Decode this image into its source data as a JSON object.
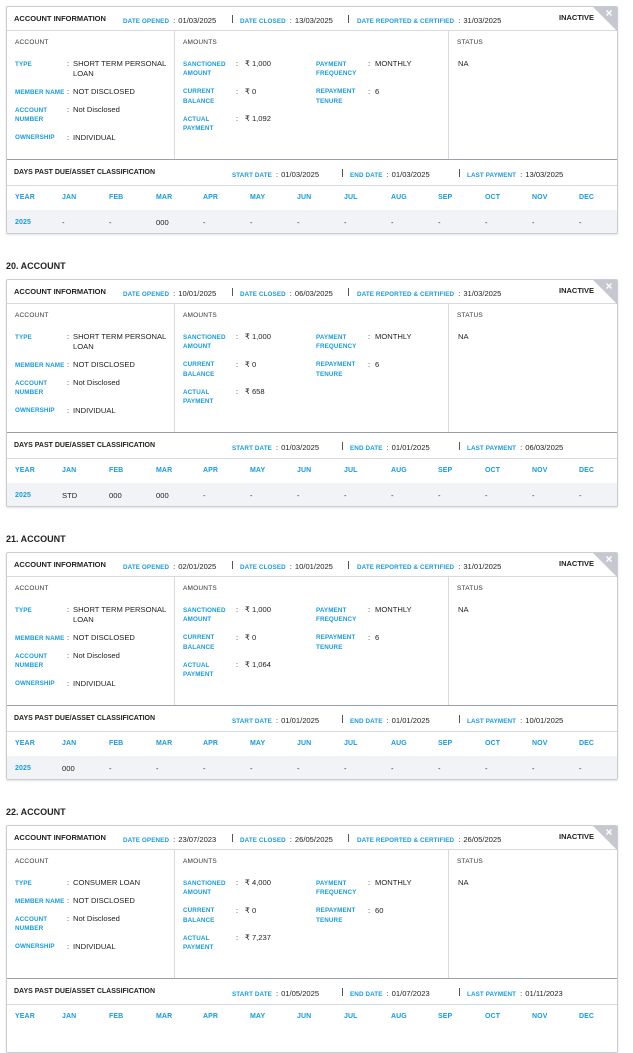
{
  "labels": {
    "account_information": "ACCOUNT INFORMATION",
    "date_opened": "DATE OPENED",
    "date_closed": "DATE CLOSED",
    "date_reported": "DATE REPORTED & CERTIFIED",
    "colon": ":",
    "account": "ACCOUNT",
    "amounts": "AMOUNTS",
    "status": "STATUS",
    "type": "TYPE",
    "member_name": "MEMBER NAME",
    "account_number": "ACCOUNT NUMBER",
    "ownership": "OWNERSHIP",
    "sanctioned_amount": "SANCTIONED AMOUNT",
    "current_balance": "CURRENT BALANCE",
    "actual_payment": "ACTUAL PAYMENT",
    "payment_frequency": "PAYMENT FREQUENCY",
    "repayment_tenure": "REPAYMENT TENURE",
    "dpd_title": "DAYS PAST DUE/ASSET CLASSIFICATION",
    "start_date": "START DATE",
    "end_date": "END DATE",
    "last_payment": "LAST PAYMENT",
    "year": "YEAR",
    "months": [
      "JAN",
      "FEB",
      "MAR",
      "APR",
      "MAY",
      "JUN",
      "JUL",
      "AUG",
      "SEP",
      "OCT",
      "NOV",
      "DEC"
    ]
  },
  "accounts": [
    {
      "date_opened": "01/03/2025",
      "date_closed": "13/03/2025",
      "date_reported": "31/03/2025",
      "status": "INACTIVE",
      "type": "SHORT TERM PERSONAL LOAN",
      "member_name": "NOT DISCLOSED",
      "account_number": "Not Disclosed",
      "ownership": "INDIVIDUAL",
      "sanctioned_amount": "₹ 1,000",
      "current_balance": "₹ 0",
      "actual_payment": "₹ 1,092",
      "payment_frequency": "MONTHLY",
      "repayment_tenure": "6",
      "status_value": "NA",
      "start_date": "01/03/2025",
      "end_date": "01/03/2025",
      "last_payment": "13/03/2025",
      "dpd": [
        {
          "year": "2025",
          "values": [
            "-",
            "-",
            "000",
            "-",
            "-",
            "-",
            "-",
            "-",
            "-",
            "-",
            "-",
            "-"
          ]
        }
      ]
    },
    {
      "heading": "20. ACCOUNT",
      "date_opened": "10/01/2025",
      "date_closed": "06/03/2025",
      "date_reported": "31/03/2025",
      "status": "INACTIVE",
      "type": "SHORT TERM PERSONAL LOAN",
      "member_name": "NOT DISCLOSED",
      "account_number": "Not Disclosed",
      "ownership": "INDIVIDUAL",
      "sanctioned_amount": "₹ 1,000",
      "current_balance": "₹ 0",
      "actual_payment": "₹ 658",
      "payment_frequency": "MONTHLY",
      "repayment_tenure": "6",
      "status_value": "NA",
      "start_date": "01/03/2025",
      "end_date": "01/01/2025",
      "last_payment": "06/03/2025",
      "dpd": [
        {
          "year": "2025",
          "values": [
            "STD",
            "000",
            "000",
            "-",
            "-",
            "-",
            "-",
            "-",
            "-",
            "-",
            "-",
            "-"
          ]
        }
      ]
    },
    {
      "heading": "21. ACCOUNT",
      "date_opened": "02/01/2025",
      "date_closed": "10/01/2025",
      "date_reported": "31/01/2025",
      "status": "INACTIVE",
      "type": "SHORT TERM PERSONAL LOAN",
      "member_name": "NOT DISCLOSED",
      "account_number": "Not Disclosed",
      "ownership": "INDIVIDUAL",
      "sanctioned_amount": "₹ 1,000",
      "current_balance": "₹ 0",
      "actual_payment": "₹ 1,064",
      "payment_frequency": "MONTHLY",
      "repayment_tenure": "6",
      "status_value": "NA",
      "start_date": "01/01/2025",
      "end_date": "01/01/2025",
      "last_payment": "10/01/2025",
      "dpd": [
        {
          "year": "2025",
          "values": [
            "000",
            "-",
            "-",
            "-",
            "-",
            "-",
            "-",
            "-",
            "-",
            "-",
            "-",
            "-"
          ]
        }
      ]
    },
    {
      "heading": "22. ACCOUNT",
      "date_opened": "23/07/2023",
      "date_closed": "26/05/2025",
      "date_reported": "26/05/2025",
      "status": "INACTIVE",
      "type": "CONSUMER LOAN",
      "member_name": "NOT DISCLOSED",
      "account_number": "Not Disclosed",
      "ownership": "INDIVIDUAL",
      "sanctioned_amount": "₹ 4,000",
      "current_balance": "₹ 0",
      "actual_payment": "₹ 7,237",
      "payment_frequency": "MONTHLY",
      "repayment_tenure": "60",
      "status_value": "NA",
      "start_date": "01/05/2025",
      "end_date": "01/07/2023",
      "last_payment": "01/11/2023",
      "dpd": []
    }
  ]
}
